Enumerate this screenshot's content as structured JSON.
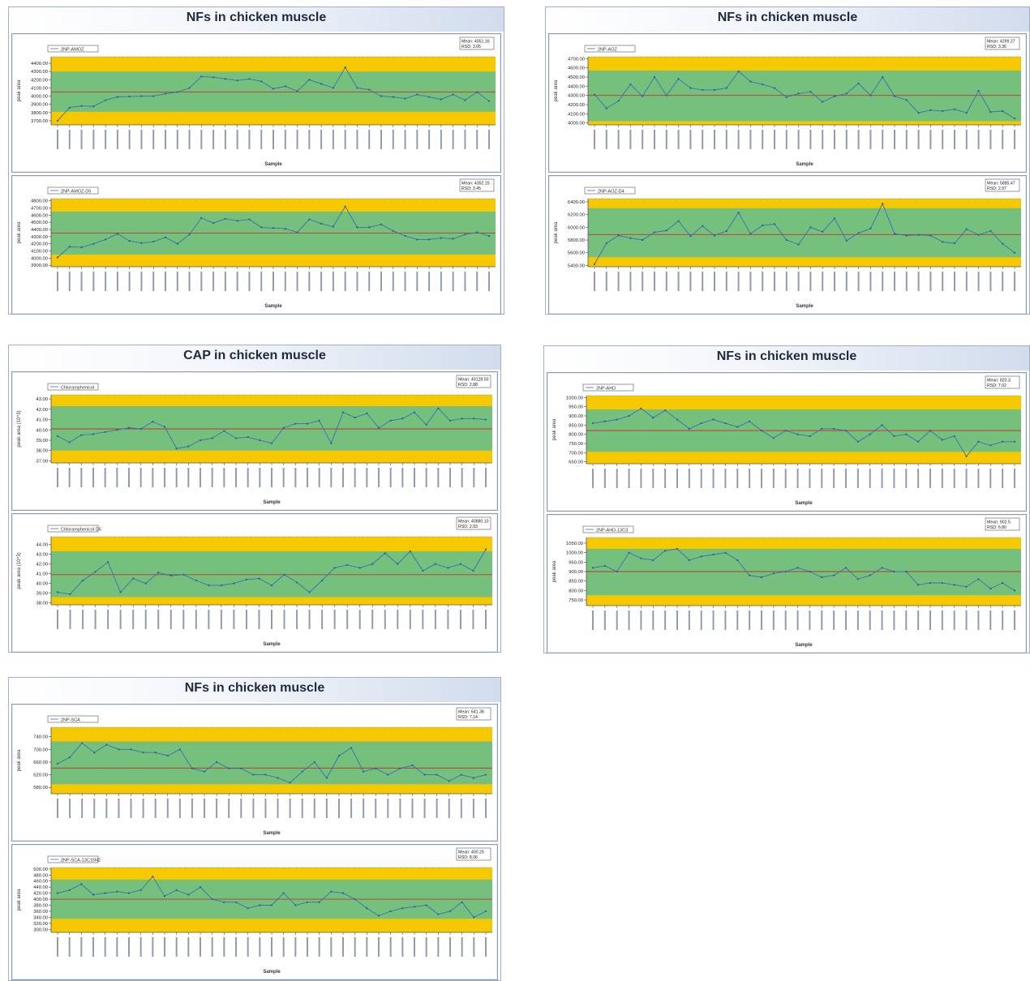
{
  "chart_data": [
    {
      "title": "NFs in chicken muscle",
      "charts": [
        {
          "type": "line",
          "series_name": "2NP-AMOZ",
          "ylabel": "peak area",
          "xlabel": "Sample",
          "stats": {
            "mean_label": "Mean: 4051.16",
            "rsd_label": "RSD: 3.05"
          },
          "ylim": [
            3650,
            4480
          ],
          "yticks": [
            3700,
            3800,
            3900,
            4000,
            4100,
            4200,
            4300,
            4400
          ],
          "mean": 4051,
          "warn_low": 3810,
          "warn_high": 4300,
          "values": [
            3700,
            3860,
            3880,
            3875,
            3950,
            3990,
            3995,
            4000,
            4000,
            4030,
            4050,
            4100,
            4240,
            4230,
            4210,
            4190,
            4210,
            4180,
            4090,
            4120,
            4060,
            4200,
            4150,
            4100,
            4350,
            4100,
            4080,
            4000,
            3990,
            3970,
            4020,
            3990,
            3960,
            4020,
            3950,
            4050,
            3940
          ]
        },
        {
          "type": "line",
          "series_name": "2NP-AMOZ-D5",
          "ylabel": "peak area",
          "xlabel": "Sample",
          "stats": {
            "mean_label": "Mean: 4352.15",
            "rsd_label": "RSD: 3.45"
          },
          "ylim": [
            3880,
            4830
          ],
          "yticks": [
            3900,
            4000,
            4100,
            4200,
            4300,
            4400,
            4500,
            4600,
            4700,
            4800
          ],
          "mean": 4350,
          "warn_low": 4050,
          "warn_high": 4650,
          "values": [
            4010,
            4160,
            4150,
            4200,
            4260,
            4340,
            4240,
            4210,
            4230,
            4290,
            4200,
            4330,
            4560,
            4490,
            4550,
            4520,
            4540,
            4430,
            4420,
            4410,
            4360,
            4540,
            4480,
            4440,
            4720,
            4430,
            4430,
            4470,
            4380,
            4310,
            4260,
            4260,
            4280,
            4270,
            4330,
            4360,
            4310
          ]
        }
      ]
    },
    {
      "title": "NFs in chicken muscle",
      "charts": [
        {
          "type": "line",
          "series_name": "2NP-AOZ",
          "ylabel": "peak area",
          "xlabel": "Sample",
          "stats": {
            "mean_label": "Mean: 4299.27",
            "rsd_label": "RSD: 3.36"
          },
          "ylim": [
            3980,
            4720
          ],
          "yticks": [
            4000,
            4100,
            4200,
            4300,
            4400,
            4500,
            4600,
            4700
          ],
          "mean": 4300,
          "warn_low": 4020,
          "warn_high": 4570,
          "values": [
            4310,
            4160,
            4240,
            4420,
            4290,
            4500,
            4300,
            4480,
            4380,
            4360,
            4360,
            4380,
            4560,
            4450,
            4420,
            4380,
            4280,
            4320,
            4340,
            4230,
            4290,
            4320,
            4430,
            4300,
            4500,
            4290,
            4250,
            4110,
            4140,
            4130,
            4150,
            4110,
            4350,
            4120,
            4130,
            4050
          ]
        },
        {
          "type": "line",
          "series_name": "2NP-AOZ-D4",
          "ylabel": "peak area",
          "xlabel": "Sample",
          "stats": {
            "mean_label": "Mean: 5885.47",
            "rsd_label": "RSD: 2.97"
          },
          "ylim": [
            5380,
            6450
          ],
          "yticks": [
            5400,
            5600,
            5800,
            6000,
            6200,
            6400
          ],
          "mean": 5885,
          "warn_low": 5530,
          "warn_high": 6300,
          "values": [
            5420,
            5750,
            5870,
            5830,
            5800,
            5920,
            5950,
            6100,
            5860,
            6020,
            5870,
            5940,
            6230,
            5900,
            6030,
            6050,
            5800,
            5730,
            6000,
            5930,
            6140,
            5790,
            5910,
            5980,
            6370,
            5900,
            5870,
            5880,
            5870,
            5770,
            5750,
            5970,
            5880,
            5940,
            5740,
            5600
          ]
        }
      ]
    },
    {
      "title": "CAP in chicken muscle",
      "charts": [
        {
          "type": "line",
          "series_name": "Chloramphenicol",
          "ylabel": "peak area (10^3)",
          "xlabel": "Sample",
          "stats": {
            "mean_label": "Mean: 40128.50",
            "rsd_label": "RSD: 2.88"
          },
          "ylim": [
            36.8,
            43.4
          ],
          "yticks": [
            37,
            38,
            39,
            40,
            41,
            42,
            43
          ],
          "mean": 40.1,
          "warn_low": 38.0,
          "warn_high": 42.3,
          "values": [
            39.4,
            38.8,
            39.5,
            39.6,
            39.8,
            40.0,
            40.2,
            40.1,
            40.8,
            40.3,
            38.2,
            38.4,
            39.0,
            39.2,
            39.9,
            39.2,
            39.3,
            39.0,
            38.7,
            40.2,
            40.6,
            40.6,
            40.9,
            38.7,
            41.7,
            41.2,
            41.6,
            40.2,
            40.9,
            41.1,
            41.7,
            40.5,
            42.1,
            40.9,
            41.1,
            41.1,
            41.0
          ]
        },
        {
          "type": "line",
          "series_name": "Chloramphenicol D5",
          "ylabel": "peak area (10^3)",
          "xlabel": "Sample",
          "stats": {
            "mean_label": "Mean: 40880.10",
            "rsd_label": "RSD: 2.93"
          },
          "ylim": [
            37.8,
            44.8
          ],
          "yticks": [
            38,
            39,
            40,
            41,
            42,
            43,
            44
          ],
          "mean": 40.9,
          "warn_low": 38.6,
          "warn_high": 43.3,
          "values": [
            39.1,
            38.9,
            40.3,
            41.2,
            42.2,
            39.1,
            40.5,
            40.0,
            41.1,
            40.8,
            40.9,
            40.3,
            39.8,
            39.8,
            40.0,
            40.4,
            40.5,
            39.8,
            40.9,
            40.1,
            39.1,
            40.3,
            41.6,
            41.9,
            41.6,
            42.0,
            43.1,
            42.0,
            43.3,
            41.3,
            42.0,
            41.6,
            42.0,
            41.3,
            43.5
          ]
        }
      ]
    },
    {
      "title": "NFs in chicken muscle",
      "charts": [
        {
          "type": "line",
          "series_name": "2NP-AHD",
          "ylabel": "peak area",
          "xlabel": "Sample",
          "stats": {
            "mean_label": "Mean: 820.3",
            "rsd_label": "RSD: 7.02"
          },
          "ylim": [
            640,
            1010
          ],
          "yticks": [
            650,
            700,
            750,
            800,
            850,
            900,
            950,
            1000
          ],
          "mean": 820,
          "warn_low": 705,
          "warn_high": 935,
          "values": [
            860,
            870,
            880,
            900,
            940,
            890,
            930,
            880,
            830,
            860,
            880,
            860,
            840,
            870,
            820,
            780,
            820,
            800,
            790,
            830,
            830,
            820,
            760,
            800,
            850,
            790,
            800,
            760,
            820,
            770,
            790,
            680,
            760,
            740,
            760,
            760
          ]
        },
        {
          "type": "line",
          "series_name": "2NP-AHD-13C3",
          "ylabel": "peak area",
          "xlabel": "Sample",
          "stats": {
            "mean_label": "Mean: 902.5",
            "rsd_label": "RSD: 6.80"
          },
          "ylim": [
            720,
            1080
          ],
          "yticks": [
            750,
            800,
            850,
            900,
            950,
            1000,
            1050
          ],
          "mean": 900,
          "warn_low": 775,
          "warn_high": 1020,
          "values": [
            920,
            930,
            900,
            1000,
            970,
            960,
            1010,
            1020,
            960,
            980,
            990,
            1000,
            960,
            880,
            870,
            890,
            900,
            920,
            900,
            870,
            880,
            920,
            860,
            880,
            920,
            900,
            900,
            830,
            840,
            840,
            830,
            820,
            860,
            810,
            840,
            800
          ]
        }
      ]
    },
    {
      "title": "NFs in chicken muscle",
      "charts": [
        {
          "type": "line",
          "series_name": "2NP-SCA",
          "ylabel": "peak area",
          "xlabel": "Sample",
          "stats": {
            "mean_label": "Mean: 641.38",
            "rsd_label": "RSD: 7.14"
          },
          "ylim": [
            560,
            770
          ],
          "yticks": [
            580,
            620,
            660,
            700,
            740
          ],
          "mean": 641,
          "warn_low": 590,
          "warn_high": 725,
          "values": [
            655,
            675,
            720,
            690,
            715,
            700,
            700,
            690,
            690,
            680,
            700,
            640,
            630,
            660,
            640,
            640,
            620,
            620,
            610,
            595,
            630,
            660,
            610,
            680,
            705,
            630,
            640,
            620,
            640,
            650,
            620,
            620,
            600,
            620,
            610,
            620
          ]
        },
        {
          "type": "line",
          "series_name": "2NP-SCA-13C15N2",
          "ylabel": "peak area",
          "xlabel": "Sample",
          "stats": {
            "mean_label": "Mean: 400.25",
            "rsd_label": "RSD: 8.06"
          },
          "ylim": [
            290,
            505
          ],
          "yticks": [
            300,
            320,
            340,
            360,
            380,
            400,
            420,
            440,
            460,
            480,
            500
          ],
          "mean": 400,
          "warn_low": 335,
          "warn_high": 465,
          "values": [
            420,
            430,
            450,
            415,
            420,
            425,
            420,
            430,
            475,
            410,
            430,
            415,
            440,
            400,
            390,
            390,
            370,
            380,
            380,
            420,
            380,
            390,
            390,
            425,
            420,
            400,
            370,
            345,
            360,
            370,
            375,
            380,
            350,
            360,
            390,
            340,
            360
          ]
        }
      ]
    }
  ]
}
